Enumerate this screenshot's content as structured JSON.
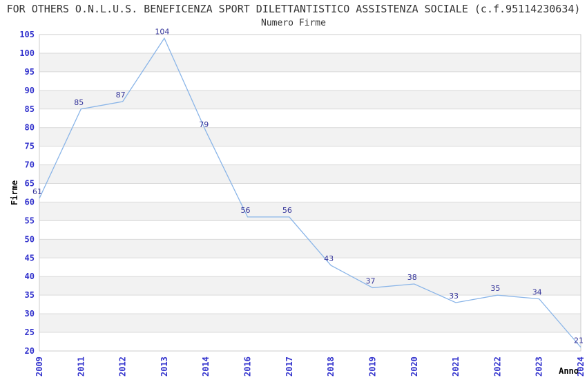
{
  "header": {
    "title": "FOR OTHERS O.N.L.U.S. BENEFICENZA SPORT DILETTANTISTICO ASSISTENZA SOCIALE (c.f.95114230634)",
    "subtitle": "Numero Firme"
  },
  "chart_data": {
    "type": "line",
    "title": "Numero Firme",
    "categories": [
      "2009",
      "2011",
      "2012",
      "2013",
      "2014",
      "2016",
      "2017",
      "2018",
      "2019",
      "2020",
      "2021",
      "2022",
      "2023",
      "2024"
    ],
    "values": [
      61,
      85,
      87,
      104,
      79,
      56,
      56,
      43,
      37,
      38,
      33,
      35,
      34,
      21
    ],
    "point_labels": [
      "61",
      "85",
      "87",
      "104",
      "79",
      "56",
      "56",
      "43",
      "37",
      "38",
      "33",
      "35",
      "34",
      "21"
    ],
    "xlabel": "Anno",
    "ylabel": "Firme",
    "ylim": [
      20,
      105
    ],
    "ytick_step": 5,
    "yticks": [
      20,
      25,
      30,
      35,
      40,
      45,
      50,
      55,
      60,
      65,
      70,
      75,
      80,
      85,
      90,
      95,
      100,
      105
    ],
    "grid": "horizontal gridlines with alternating shaded bands",
    "legend": "none",
    "markers": "none"
  },
  "colors": {
    "tick_label": "#3232cd",
    "data_label": "#333399",
    "line": "#8ab5e8",
    "band": "#f2f2f2",
    "gridline": "#d9d9d9",
    "plot_border": "#cccccc",
    "title_text": "#333333",
    "axis_title": "#000000",
    "background": "#ffffff"
  }
}
